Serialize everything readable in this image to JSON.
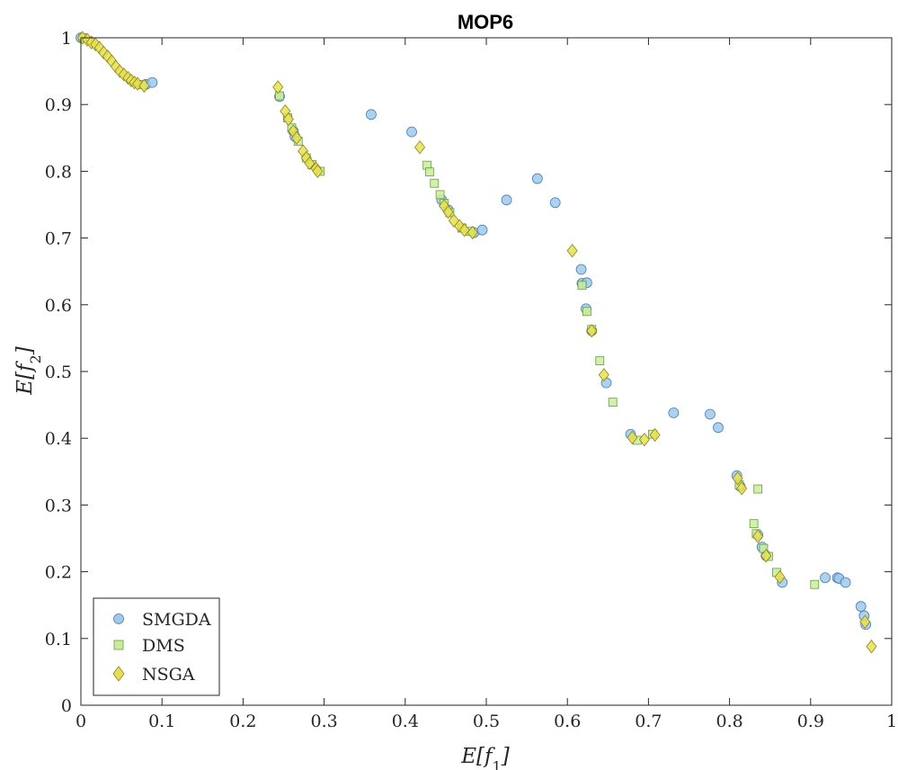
{
  "chart_data": {
    "type": "scatter",
    "title": "MOP6",
    "xlabel": "E[f1]",
    "ylabel": "E[f2]",
    "xlim": [
      0,
      1
    ],
    "ylim": [
      0,
      1
    ],
    "grid": false,
    "legend_position": "bottom-left",
    "x_ticks": [
      "0",
      "0.1",
      "0.2",
      "0.3",
      "0.4",
      "0.5",
      "0.6",
      "0.7",
      "0.8",
      "0.9",
      "1"
    ],
    "y_ticks": [
      "0",
      "0.1",
      "0.2",
      "0.3",
      "0.4",
      "0.5",
      "0.6",
      "0.7",
      "0.8",
      "0.9",
      "1"
    ],
    "series": [
      {
        "name": "SMGDA",
        "marker": "circle",
        "color": "#9ec9ee",
        "points": [
          [
            0.0,
            1.0
          ],
          [
            0.08,
            0.93
          ],
          [
            0.088,
            0.933
          ],
          [
            0.245,
            0.912
          ],
          [
            0.262,
            0.86
          ],
          [
            0.264,
            0.852
          ],
          [
            0.358,
            0.885
          ],
          [
            0.408,
            0.859
          ],
          [
            0.445,
            0.757
          ],
          [
            0.453,
            0.742
          ],
          [
            0.485,
            0.708
          ],
          [
            0.495,
            0.712
          ],
          [
            0.525,
            0.757
          ],
          [
            0.563,
            0.789
          ],
          [
            0.585,
            0.753
          ],
          [
            0.617,
            0.653
          ],
          [
            0.618,
            0.632
          ],
          [
            0.623,
            0.594
          ],
          [
            0.624,
            0.633
          ],
          [
            0.63,
            0.561
          ],
          [
            0.648,
            0.483
          ],
          [
            0.678,
            0.406
          ],
          [
            0.731,
            0.438
          ],
          [
            0.776,
            0.436
          ],
          [
            0.786,
            0.416
          ],
          [
            0.809,
            0.344
          ],
          [
            0.813,
            0.328
          ],
          [
            0.835,
            0.255
          ],
          [
            0.84,
            0.237
          ],
          [
            0.845,
            0.224
          ],
          [
            0.865,
            0.184
          ],
          [
            0.918,
            0.191
          ],
          [
            0.933,
            0.191
          ],
          [
            0.935,
            0.19
          ],
          [
            0.943,
            0.184
          ],
          [
            0.962,
            0.148
          ],
          [
            0.966,
            0.134
          ],
          [
            0.968,
            0.121
          ]
        ]
      },
      {
        "name": "DMS",
        "marker": "square",
        "color": "#c8ee9a",
        "points": [
          [
            0.002,
            1.0
          ],
          [
            0.075,
            0.93
          ],
          [
            0.245,
            0.913
          ],
          [
            0.255,
            0.88
          ],
          [
            0.26,
            0.865
          ],
          [
            0.268,
            0.845
          ],
          [
            0.278,
            0.82
          ],
          [
            0.285,
            0.81
          ],
          [
            0.295,
            0.8
          ],
          [
            0.427,
            0.809
          ],
          [
            0.43,
            0.799
          ],
          [
            0.436,
            0.782
          ],
          [
            0.443,
            0.765
          ],
          [
            0.448,
            0.752
          ],
          [
            0.455,
            0.738
          ],
          [
            0.47,
            0.715
          ],
          [
            0.48,
            0.71
          ],
          [
            0.618,
            0.629
          ],
          [
            0.624,
            0.59
          ],
          [
            0.63,
            0.563
          ],
          [
            0.64,
            0.516
          ],
          [
            0.656,
            0.454
          ],
          [
            0.686,
            0.397
          ],
          [
            0.705,
            0.406
          ],
          [
            0.812,
            0.33
          ],
          [
            0.83,
            0.272
          ],
          [
            0.833,
            0.257
          ],
          [
            0.835,
            0.324
          ],
          [
            0.842,
            0.235
          ],
          [
            0.848,
            0.223
          ],
          [
            0.858,
            0.199
          ],
          [
            0.905,
            0.181
          ]
        ]
      },
      {
        "name": "NSGA",
        "marker": "diamond",
        "color": "#e8e050",
        "points": [
          [
            0.002,
            1.0
          ],
          [
            0.008,
            0.997
          ],
          [
            0.013,
            0.993
          ],
          [
            0.018,
            0.99
          ],
          [
            0.023,
            0.985
          ],
          [
            0.028,
            0.978
          ],
          [
            0.033,
            0.972
          ],
          [
            0.038,
            0.965
          ],
          [
            0.043,
            0.957
          ],
          [
            0.048,
            0.95
          ],
          [
            0.053,
            0.945
          ],
          [
            0.058,
            0.94
          ],
          [
            0.062,
            0.936
          ],
          [
            0.066,
            0.933
          ],
          [
            0.07,
            0.931
          ],
          [
            0.078,
            0.928
          ],
          [
            0.243,
            0.926
          ],
          [
            0.252,
            0.89
          ],
          [
            0.256,
            0.878
          ],
          [
            0.262,
            0.86
          ],
          [
            0.266,
            0.85
          ],
          [
            0.274,
            0.83
          ],
          [
            0.278,
            0.82
          ],
          [
            0.282,
            0.812
          ],
          [
            0.29,
            0.804
          ],
          [
            0.292,
            0.8
          ],
          [
            0.418,
            0.836
          ],
          [
            0.448,
            0.748
          ],
          [
            0.453,
            0.739
          ],
          [
            0.46,
            0.726
          ],
          [
            0.467,
            0.718
          ],
          [
            0.473,
            0.712
          ],
          [
            0.483,
            0.708
          ],
          [
            0.606,
            0.681
          ],
          [
            0.63,
            0.561
          ],
          [
            0.645,
            0.495
          ],
          [
            0.68,
            0.401
          ],
          [
            0.695,
            0.398
          ],
          [
            0.708,
            0.405
          ],
          [
            0.81,
            0.34
          ],
          [
            0.815,
            0.325
          ],
          [
            0.835,
            0.253
          ],
          [
            0.845,
            0.224
          ],
          [
            0.862,
            0.192
          ],
          [
            0.967,
            0.125
          ],
          [
            0.975,
            0.088
          ]
        ]
      }
    ]
  }
}
